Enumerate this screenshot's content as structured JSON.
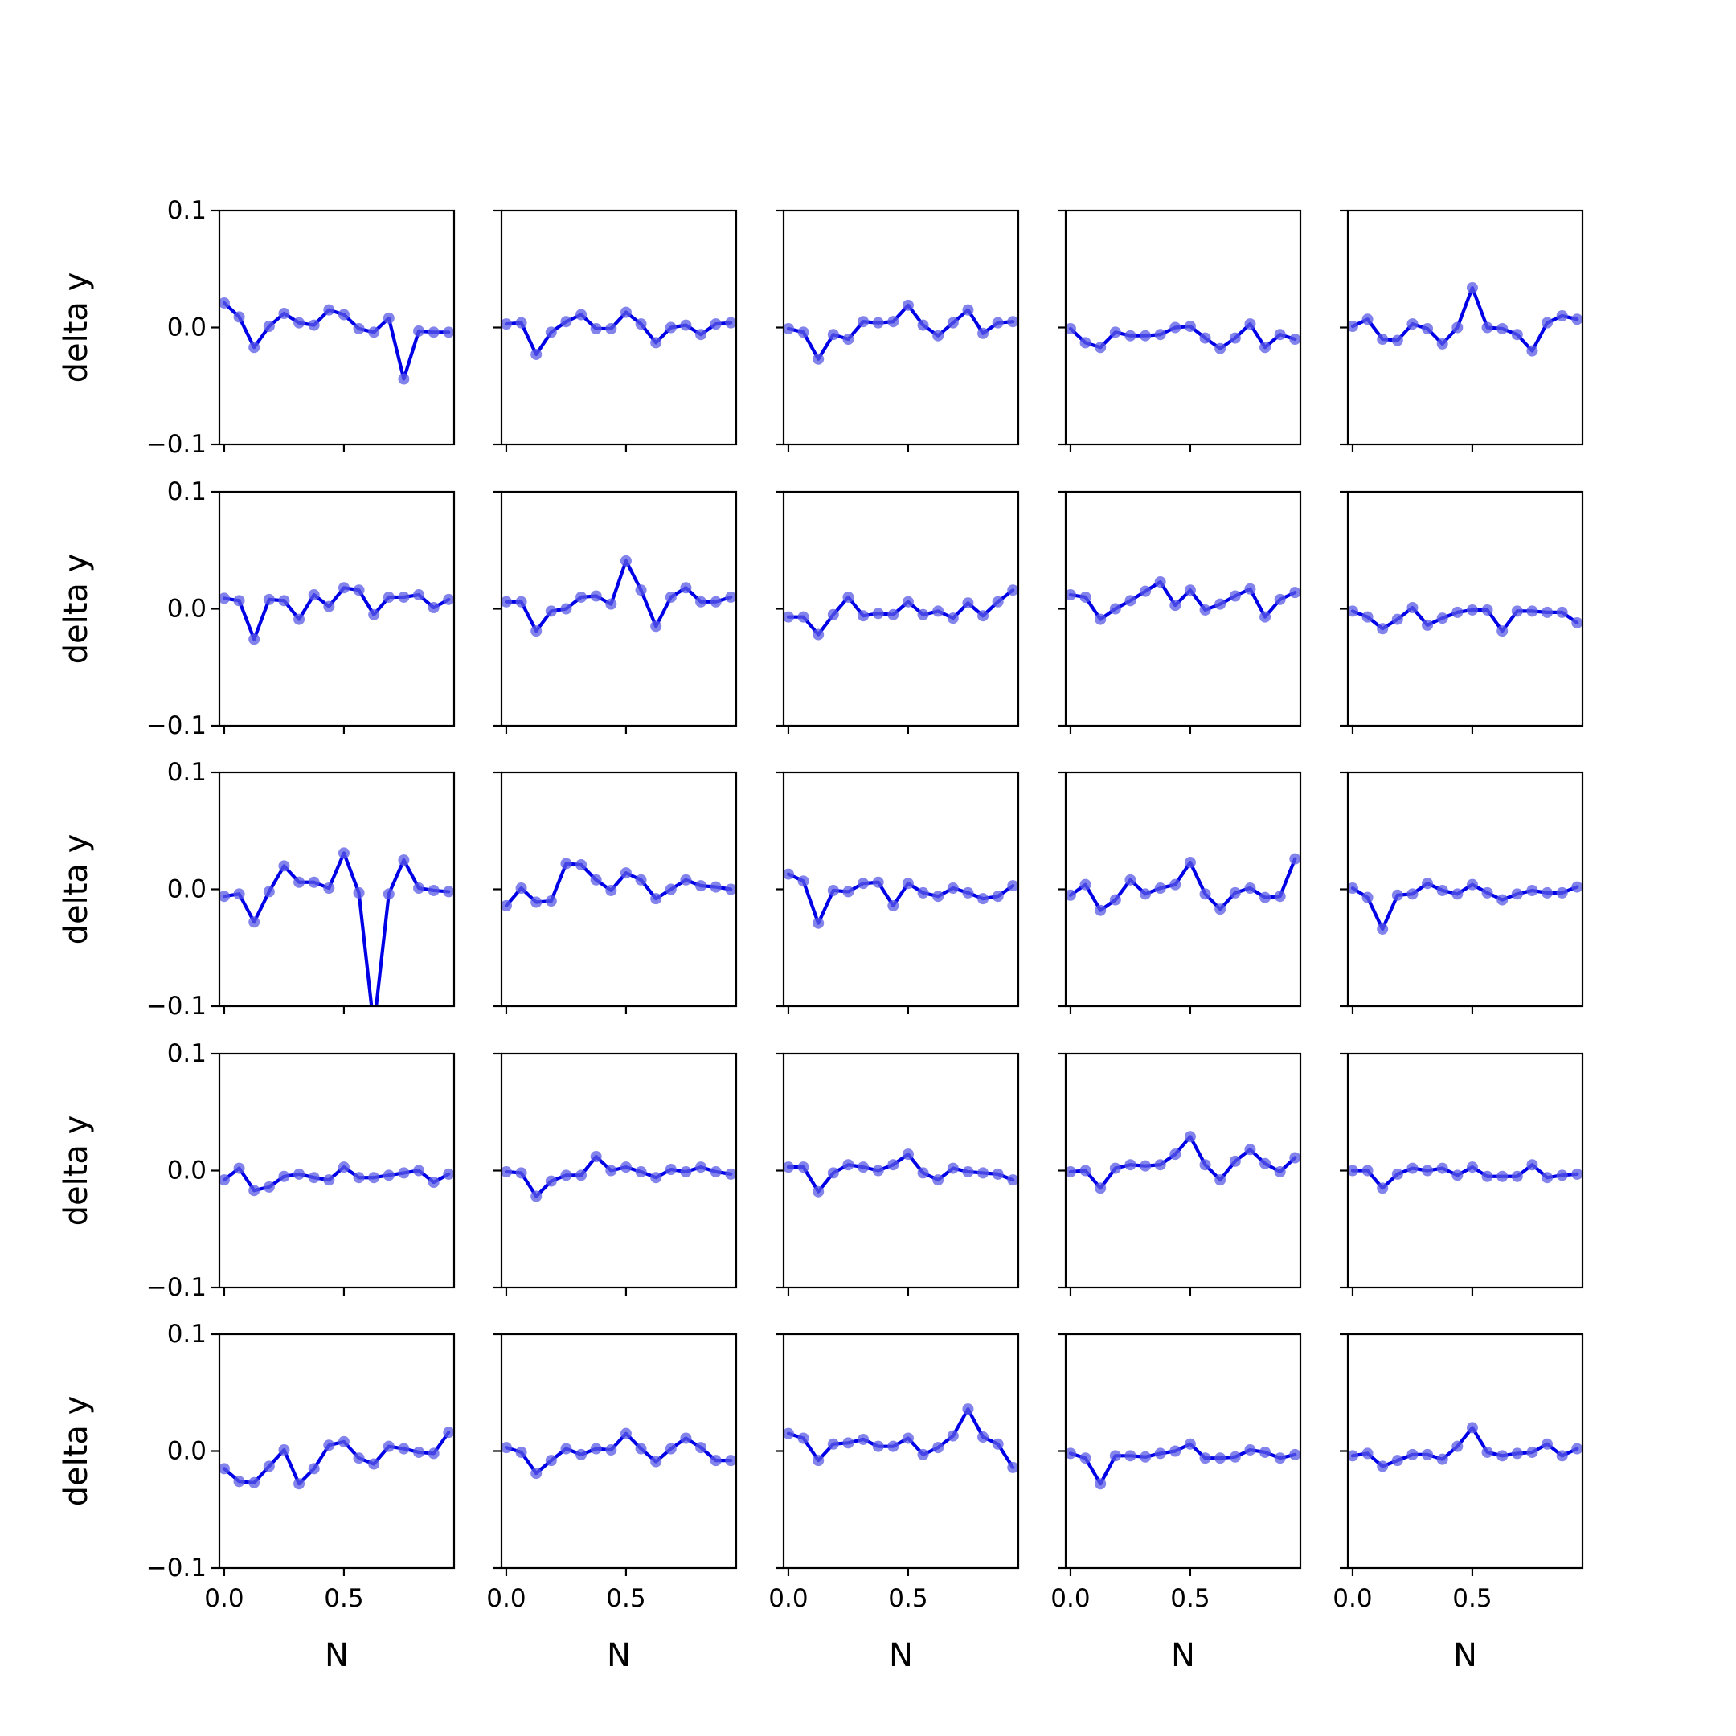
{
  "chart_data": {
    "type": "line",
    "layout": "5x5 grid of small multiples",
    "xlabel": "N",
    "ylabel": "delta y",
    "xlim": [
      -0.02,
      0.96
    ],
    "ylim": [
      -0.1,
      0.1
    ],
    "xticks": [
      0.0,
      0.5
    ],
    "xtick_labels": [
      "0.0",
      "0.5"
    ],
    "yticks": [
      -0.1,
      0.0,
      0.1
    ],
    "ytick_labels": [
      "−0.1",
      "0.0",
      "0.1"
    ],
    "x": [
      0.0,
      0.0625,
      0.125,
      0.1875,
      0.25,
      0.3125,
      0.375,
      0.4375,
      0.5,
      0.5625,
      0.625,
      0.6875,
      0.75,
      0.8125,
      0.875,
      0.9375
    ],
    "colors": {
      "line": "#0000e6",
      "marker": "#5a5ae6"
    },
    "panels": [
      {
        "values": [
          0.021,
          0.009,
          -0.017,
          0.001,
          0.012,
          0.004,
          0.002,
          0.015,
          0.011,
          -0.001,
          -0.004,
          0.008,
          -0.044,
          -0.003,
          -0.004,
          -0.004
        ]
      },
      {
        "values": [
          0.003,
          0.004,
          -0.023,
          -0.004,
          0.005,
          0.011,
          -0.001,
          -0.001,
          0.013,
          0.003,
          -0.013,
          0.0,
          0.002,
          -0.006,
          0.003,
          0.004
        ]
      },
      {
        "values": [
          -0.001,
          -0.004,
          -0.027,
          -0.006,
          -0.01,
          0.005,
          0.004,
          0.005,
          0.019,
          0.002,
          -0.007,
          0.004,
          0.015,
          -0.005,
          0.004,
          0.005
        ]
      },
      {
        "values": [
          -0.001,
          -0.013,
          -0.017,
          -0.004,
          -0.007,
          -0.007,
          -0.006,
          0.0,
          0.001,
          -0.009,
          -0.018,
          -0.009,
          0.003,
          -0.017,
          -0.006,
          -0.01
        ]
      },
      {
        "values": [
          0.001,
          0.007,
          -0.01,
          -0.011,
          0.003,
          -0.001,
          -0.014,
          0.0,
          0.034,
          0.0,
          -0.001,
          -0.006,
          -0.02,
          0.004,
          0.01,
          0.007
        ]
      },
      {
        "values": [
          0.009,
          0.007,
          -0.026,
          0.008,
          0.007,
          -0.009,
          0.012,
          0.002,
          0.018,
          0.016,
          -0.005,
          0.01,
          0.01,
          0.012,
          0.001,
          0.008
        ]
      },
      {
        "values": [
          0.006,
          0.006,
          -0.019,
          -0.002,
          0.0,
          0.01,
          0.011,
          0.004,
          0.041,
          0.016,
          -0.015,
          0.01,
          0.018,
          0.006,
          0.006,
          0.01
        ]
      },
      {
        "values": [
          -0.007,
          -0.007,
          -0.022,
          -0.005,
          0.01,
          -0.006,
          -0.004,
          -0.005,
          0.006,
          -0.005,
          -0.002,
          -0.008,
          0.005,
          -0.006,
          0.006,
          0.016
        ]
      },
      {
        "values": [
          0.012,
          0.01,
          -0.009,
          0.0,
          0.007,
          0.015,
          0.023,
          0.003,
          0.016,
          -0.001,
          0.004,
          0.011,
          0.017,
          -0.007,
          0.008,
          0.014
        ]
      },
      {
        "values": [
          -0.002,
          -0.007,
          -0.017,
          -0.009,
          0.001,
          -0.014,
          -0.008,
          -0.003,
          -0.001,
          -0.001,
          -0.019,
          -0.002,
          -0.002,
          -0.003,
          -0.003,
          -0.012
        ]
      },
      {
        "values": [
          -0.006,
          -0.004,
          -0.028,
          -0.002,
          0.02,
          0.006,
          0.006,
          0.001,
          0.031,
          -0.003,
          -0.118,
          -0.004,
          0.025,
          0.001,
          -0.001,
          -0.002
        ]
      },
      {
        "values": [
          -0.014,
          0.001,
          -0.011,
          -0.01,
          0.022,
          0.021,
          0.008,
          -0.001,
          0.014,
          0.008,
          -0.008,
          0.0,
          0.008,
          0.003,
          0.002,
          0.0
        ]
      },
      {
        "values": [
          0.013,
          0.007,
          -0.029,
          -0.001,
          -0.002,
          0.005,
          0.006,
          -0.014,
          0.005,
          -0.003,
          -0.006,
          0.001,
          -0.003,
          -0.008,
          -0.006,
          0.003
        ]
      },
      {
        "values": [
          -0.005,
          0.004,
          -0.018,
          -0.009,
          0.008,
          -0.004,
          0.001,
          0.004,
          0.023,
          -0.004,
          -0.017,
          -0.003,
          0.001,
          -0.007,
          -0.006,
          0.026
        ]
      },
      {
        "values": [
          0.001,
          -0.007,
          -0.034,
          -0.005,
          -0.004,
          0.005,
          -0.001,
          -0.004,
          0.004,
          -0.003,
          -0.009,
          -0.004,
          -0.001,
          -0.003,
          -0.003,
          0.002
        ]
      },
      {
        "values": [
          -0.008,
          0.002,
          -0.017,
          -0.014,
          -0.005,
          -0.003,
          -0.006,
          -0.008,
          0.003,
          -0.006,
          -0.006,
          -0.004,
          -0.002,
          0.0,
          -0.01,
          -0.003
        ]
      },
      {
        "values": [
          -0.001,
          -0.002,
          -0.022,
          -0.009,
          -0.004,
          -0.004,
          0.012,
          0.0,
          0.003,
          -0.001,
          -0.006,
          0.001,
          -0.001,
          0.003,
          -0.001,
          -0.003
        ]
      },
      {
        "values": [
          0.003,
          0.003,
          -0.018,
          -0.002,
          0.005,
          0.003,
          0.0,
          0.005,
          0.014,
          -0.002,
          -0.008,
          0.002,
          -0.001,
          -0.002,
          -0.003,
          -0.008
        ]
      },
      {
        "values": [
          -0.001,
          0.0,
          -0.015,
          0.002,
          0.005,
          0.004,
          0.005,
          0.014,
          0.029,
          0.005,
          -0.008,
          0.008,
          0.018,
          0.006,
          -0.001,
          0.011
        ]
      },
      {
        "values": [
          0.0,
          0.0,
          -0.015,
          -0.003,
          0.002,
          0.0,
          0.002,
          -0.004,
          0.003,
          -0.005,
          -0.005,
          -0.005,
          0.005,
          -0.006,
          -0.004,
          -0.003
        ]
      },
      {
        "values": [
          -0.015,
          -0.026,
          -0.027,
          -0.013,
          0.001,
          -0.028,
          -0.015,
          0.005,
          0.008,
          -0.006,
          -0.011,
          0.004,
          0.002,
          -0.001,
          -0.002,
          0.016
        ]
      },
      {
        "values": [
          0.003,
          -0.001,
          -0.019,
          -0.008,
          0.002,
          -0.003,
          0.002,
          0.001,
          0.015,
          0.002,
          -0.009,
          0.002,
          0.011,
          0.003,
          -0.008,
          -0.008
        ]
      },
      {
        "values": [
          0.015,
          0.011,
          -0.008,
          0.006,
          0.007,
          0.01,
          0.004,
          0.004,
          0.011,
          -0.003,
          0.003,
          0.013,
          0.036,
          0.012,
          0.006,
          -0.014
        ]
      },
      {
        "values": [
          -0.002,
          -0.006,
          -0.028,
          -0.004,
          -0.004,
          -0.005,
          -0.002,
          0.0,
          0.006,
          -0.006,
          -0.006,
          -0.005,
          0.001,
          -0.001,
          -0.006,
          -0.003
        ]
      },
      {
        "values": [
          -0.004,
          -0.002,
          -0.013,
          -0.008,
          -0.003,
          -0.003,
          -0.007,
          0.004,
          0.02,
          -0.001,
          -0.004,
          -0.002,
          -0.001,
          0.006,
          -0.004,
          0.002
        ]
      }
    ]
  }
}
